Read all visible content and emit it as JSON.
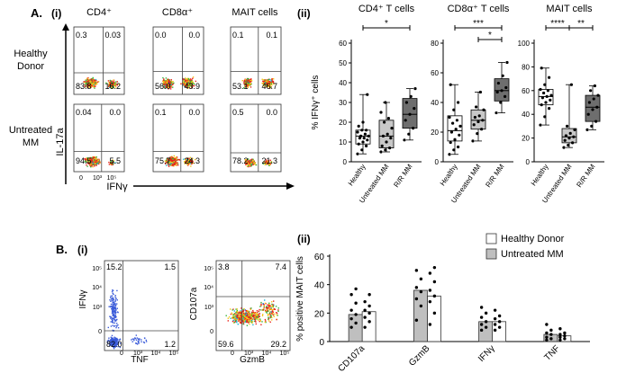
{
  "panel_A": {
    "label": "A.",
    "sub_i": "(i)",
    "sub_ii": "(ii)",
    "col_headers": [
      "CD4⁺",
      "CD8α⁺",
      "MAIT cells"
    ],
    "row_labels": [
      [
        "Healthy",
        "Donor"
      ],
      [
        "Untreated",
        "MM"
      ]
    ],
    "y_axis_label": "IL-17a",
    "x_axis_label": "IFNγ",
    "tick_labels": [
      "0",
      "10³",
      "10⁵"
    ],
    "flow_plots": [
      {
        "name": "hd-cd4",
        "ul": "0.3",
        "ur": "0.03",
        "ll": "83.8",
        "lr": "16.2"
      },
      {
        "name": "hd-cd8",
        "ul": "0.0",
        "ur": "0.0",
        "ll": "56.0",
        "lr": "43.9"
      },
      {
        "name": "hd-mait",
        "ul": "0.1",
        "ur": "0.1",
        "ll": "53.1",
        "lr": "46.7"
      },
      {
        "name": "mm-cd4",
        "ul": "0.04",
        "ur": "0.0",
        "ll": "94.5",
        "lr": "5.5"
      },
      {
        "name": "mm-cd8",
        "ul": "0.1",
        "ur": "0.0",
        "ll": "75.7",
        "lr": "24.3"
      },
      {
        "name": "mm-mait",
        "ul": "0.5",
        "ur": "0.0",
        "ll": "78.2",
        "lr": "21.3"
      }
    ]
  },
  "panel_B": {
    "label": "B.",
    "sub_i": "(i)",
    "sub_ii": "(ii)",
    "flow_plots": [
      {
        "name": "ifng-tnf",
        "ylabel": "IFNγ",
        "xlabel": "TNF",
        "ul": "15.2",
        "ur": "1.5",
        "ll": "82.0",
        "lr": "1.2"
      },
      {
        "name": "cd107a-gzmb",
        "ylabel": "CD107a",
        "xlabel": "GzmB",
        "ul": "3.8",
        "ur": "7.4",
        "ll": "59.6",
        "lr": "29.2"
      }
    ],
    "y_ticks_flow": [
      "0",
      "10³",
      "10⁴",
      "10⁵"
    ],
    "x_ticks_flow": [
      "0",
      "10³",
      "10⁴",
      "10⁵"
    ]
  },
  "chart_data": [
    {
      "type": "box",
      "title": "CD4⁺ T cells",
      "ylabel": "% IFNγ⁺ cells",
      "ylim": [
        0,
        60
      ],
      "yticks": [
        "0",
        "10",
        "20",
        "30",
        "40",
        "50",
        "60"
      ],
      "categories": [
        "Healthy",
        "Untreated MM",
        "R/R MM"
      ],
      "colors": [
        "#ffffff",
        "#c8c8c8",
        "#6e6e6e"
      ],
      "boxes": [
        {
          "min": 4,
          "q1": 9,
          "median": 13,
          "q3": 16,
          "max": 34,
          "points": [
            4,
            6,
            8,
            9,
            10,
            11,
            12,
            12,
            13,
            13,
            14,
            15,
            16,
            16,
            18,
            20,
            34
          ]
        },
        {
          "min": 5,
          "q1": 7,
          "median": 13,
          "q3": 21,
          "max": 30,
          "points": [
            5,
            6,
            7,
            8,
            10,
            12,
            13,
            14,
            17,
            20,
            22,
            25,
            30
          ]
        },
        {
          "min": 11,
          "q1": 17,
          "median": 24,
          "q3": 32,
          "max": 37,
          "points": [
            11,
            14,
            17,
            21,
            24,
            27,
            30,
            33,
            37
          ]
        }
      ],
      "significance": [
        {
          "from": 0,
          "to": 2,
          "label": "*",
          "level": 0
        }
      ]
    },
    {
      "type": "box",
      "title": "CD8α⁺ T cells",
      "ylabel": "",
      "ylim": [
        0,
        80
      ],
      "yticks": [
        "0",
        "20",
        "40",
        "60",
        "80"
      ],
      "categories": [
        "Healthy",
        "Untreated MM",
        "R/R MM"
      ],
      "colors": [
        "#ffffff",
        "#c8c8c8",
        "#6e6e6e"
      ],
      "boxes": [
        {
          "min": 5,
          "q1": 14,
          "median": 21,
          "q3": 31,
          "max": 52,
          "points": [
            5,
            8,
            10,
            13,
            15,
            18,
            20,
            22,
            24,
            26,
            28,
            30,
            35,
            40,
            52
          ]
        },
        {
          "min": 14,
          "q1": 22,
          "median": 28,
          "q3": 35,
          "max": 47,
          "points": [
            14,
            19,
            22,
            25,
            27,
            28,
            30,
            31,
            35,
            37,
            47
          ]
        },
        {
          "min": 33,
          "q1": 41,
          "median": 48,
          "q3": 56,
          "max": 67,
          "points": [
            33,
            40,
            44,
            47,
            48,
            50,
            53,
            58,
            67
          ]
        }
      ],
      "significance": [
        {
          "from": 0,
          "to": 2,
          "label": "***",
          "level": 0
        },
        {
          "from": 1,
          "to": 2,
          "label": "*",
          "level": 1
        }
      ]
    },
    {
      "type": "box",
      "title": "MAIT cells",
      "ylabel": "",
      "ylim": [
        0,
        100
      ],
      "yticks": [
        "0",
        "20",
        "40",
        "60",
        "80",
        "100"
      ],
      "categories": [
        "Healthy",
        "Untreated MM",
        "R/R MM"
      ],
      "colors": [
        "#ffffff",
        "#c8c8c8",
        "#6e6e6e"
      ],
      "boxes": [
        {
          "min": 31,
          "q1": 48,
          "median": 55,
          "q3": 61,
          "max": 79,
          "points": [
            31,
            38,
            45,
            48,
            50,
            52,
            54,
            55,
            56,
            58,
            60,
            61,
            65,
            71,
            79
          ]
        },
        {
          "min": 12,
          "q1": 16,
          "median": 21,
          "q3": 28,
          "max": 65,
          "points": [
            12,
            14,
            16,
            18,
            20,
            21,
            22,
            24,
            27,
            30,
            65
          ]
        },
        {
          "min": 27,
          "q1": 34,
          "median": 46,
          "q3": 56,
          "max": 64,
          "points": [
            27,
            30,
            34,
            40,
            44,
            46,
            50,
            53,
            56,
            60,
            64
          ]
        }
      ],
      "significance": [
        {
          "from": 0,
          "to": 1,
          "label": "****",
          "level": 0
        },
        {
          "from": 1,
          "to": 2,
          "label": "**",
          "level": 0
        }
      ]
    },
    {
      "type": "bar",
      "title": "",
      "ylabel": "% positive MAIT cells",
      "ylim": [
        0,
        60
      ],
      "yticks": [
        "0",
        "20",
        "40",
        "60"
      ],
      "categories": [
        "CD107a",
        "GzmB",
        "IFNγ",
        "TNF"
      ],
      "series": [
        {
          "name": "Healthy Donor",
          "color": "#ffffff",
          "values": [
            21,
            32,
            14,
            4
          ],
          "points": [
            [
              10,
              14,
              17,
              20,
              22,
              25,
              28,
              33
            ],
            [
              12,
              20,
              28,
              32,
              36,
              42,
              48,
              52
            ],
            [
              8,
              10,
              12,
              14,
              16,
              18,
              22
            ],
            [
              1,
              2,
              3,
              4,
              5,
              6,
              9
            ]
          ]
        },
        {
          "name": "Untreated MM",
          "color": "#bfbfbf",
          "values": [
            19,
            36,
            14,
            5
          ],
          "points": [
            [
              10,
              13,
              16,
              19,
              22,
              27,
              33,
              37
            ],
            [
              15,
              25,
              30,
              35,
              38,
              44,
              50
            ],
            [
              8,
              10,
              12,
              14,
              17,
              20,
              24
            ],
            [
              1,
              2,
              3,
              5,
              6,
              8,
              12
            ]
          ]
        }
      ]
    }
  ]
}
